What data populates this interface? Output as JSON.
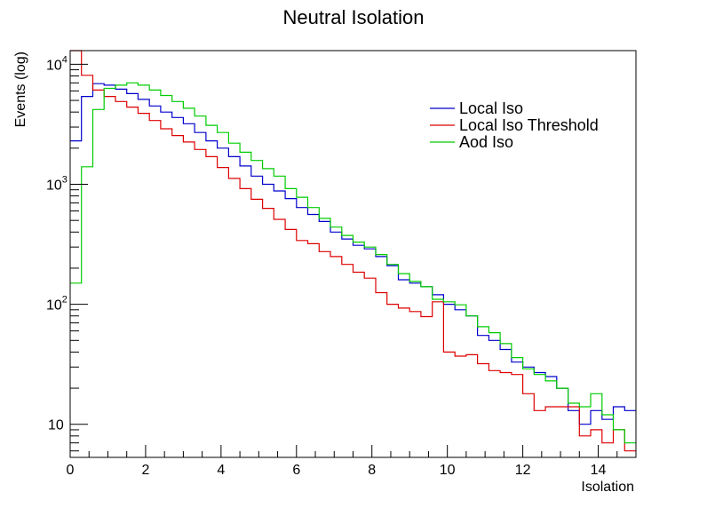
{
  "chart_data": {
    "type": "line",
    "title": "Neutral Isolation",
    "xlabel": "Isolation",
    "ylabel": "Events (log)",
    "xlim": [
      0,
      15
    ],
    "ylim": [
      5.3,
      13000
    ],
    "yscale": "log",
    "grid": false,
    "legend_position": "top-right",
    "x_ticks": [
      {
        "value": 0,
        "label": "0"
      },
      {
        "value": 2,
        "label": "2"
      },
      {
        "value": 4,
        "label": "4"
      },
      {
        "value": 6,
        "label": "6"
      },
      {
        "value": 8,
        "label": "8"
      },
      {
        "value": 10,
        "label": "10"
      },
      {
        "value": 12,
        "label": "12"
      },
      {
        "value": 14,
        "label": "14"
      }
    ],
    "y_ticks": [
      {
        "value": 10,
        "base": "10",
        "exp": ""
      },
      {
        "value": 100,
        "base": "10",
        "exp": "2"
      },
      {
        "value": 1000,
        "base": "10",
        "exp": "3"
      },
      {
        "value": 10000,
        "base": "10",
        "exp": "4"
      }
    ],
    "bin_edges": [
      0,
      0.3,
      0.6,
      0.9,
      1.2,
      1.5,
      1.8,
      2.1,
      2.4,
      2.7,
      3.0,
      3.3,
      3.6,
      3.9,
      4.2,
      4.5,
      4.8,
      5.1,
      5.4,
      5.7,
      6.0,
      6.3,
      6.6,
      6.9,
      7.2,
      7.5,
      7.8,
      8.1,
      8.4,
      8.7,
      9.0,
      9.3,
      9.6,
      9.9,
      10.2,
      10.5,
      10.8,
      11.1,
      11.4,
      11.7,
      12.0,
      12.3,
      12.6,
      12.9,
      13.2,
      13.5,
      13.8,
      14.1,
      14.4,
      14.7,
      15.0
    ],
    "series": [
      {
        "name": "Local Iso",
        "color": "#0000cc",
        "values": [
          2300,
          5400,
          6900,
          6700,
          6200,
          5700,
          5100,
          4500,
          4000,
          3600,
          3200,
          2700,
          2300,
          2000,
          1700,
          1420,
          1170,
          1000,
          880,
          760,
          640,
          560,
          490,
          400,
          350,
          310,
          290,
          250,
          210,
          160,
          150,
          140,
          120,
          100,
          90,
          80,
          55,
          50,
          42,
          33,
          30,
          27,
          25,
          20,
          13,
          10,
          13,
          11,
          14,
          13
        ]
      },
      {
        "name": "Local Iso Threshold",
        "color": "#dd0000",
        "values": [
          13000,
          8100,
          6100,
          5400,
          4900,
          4400,
          3900,
          3400,
          2900,
          2550,
          2250,
          1950,
          1700,
          1380,
          1120,
          920,
          750,
          630,
          510,
          420,
          340,
          320,
          275,
          250,
          215,
          185,
          165,
          125,
          100,
          93,
          87,
          79,
          105,
          40,
          37,
          38,
          32,
          28,
          27,
          26,
          18,
          13,
          14,
          14,
          14,
          8,
          9,
          7,
          9,
          6
        ]
      },
      {
        "name": "Aod Iso",
        "color": "#00cc00",
        "values": [
          150,
          1400,
          4200,
          6300,
          6700,
          7000,
          6700,
          6100,
          5500,
          4900,
          4300,
          3700,
          3100,
          2700,
          2200,
          1850,
          1580,
          1350,
          1170,
          920,
          780,
          640,
          520,
          440,
          375,
          330,
          300,
          260,
          215,
          180,
          155,
          140,
          110,
          105,
          99,
          80,
          65,
          58,
          47,
          36,
          29,
          26,
          23,
          20,
          15,
          14,
          18,
          12,
          9,
          7
        ]
      }
    ]
  }
}
